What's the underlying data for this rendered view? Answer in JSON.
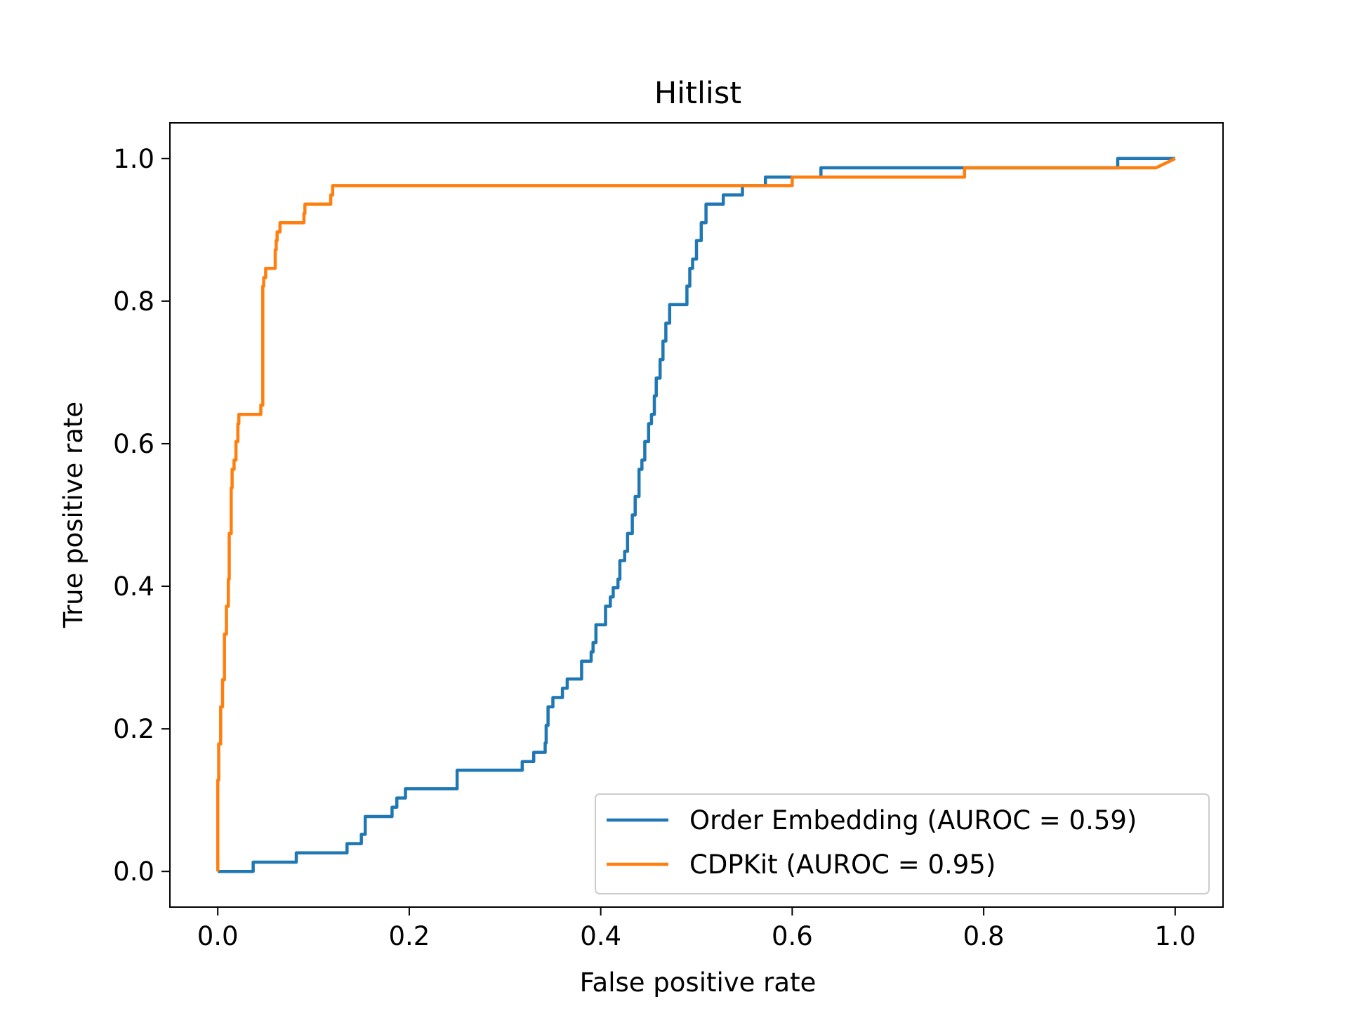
{
  "chart_data": {
    "type": "line",
    "title": "Hitlist",
    "xlabel": "False positive rate",
    "ylabel": "True positive rate",
    "xlim": [
      -0.05,
      1.05
    ],
    "ylim": [
      -0.05,
      1.05
    ],
    "xticks": [
      0.0,
      0.2,
      0.4,
      0.6,
      0.8,
      1.0
    ],
    "xtick_labels": [
      "0.0",
      "0.2",
      "0.4",
      "0.6",
      "0.8",
      "1.0"
    ],
    "yticks": [
      0.0,
      0.2,
      0.4,
      0.6,
      0.8,
      1.0
    ],
    "ytick_labels": [
      "0.0",
      "0.2",
      "0.4",
      "0.6",
      "0.8",
      "1.0"
    ],
    "grid": false,
    "legend_position": "bottom-right",
    "series": [
      {
        "name": "Order Embedding (AUROC = 0.59)",
        "color": "#1f77b4",
        "x": [
          0.0,
          0.0,
          0.037,
          0.037,
          0.082,
          0.082,
          0.135,
          0.135,
          0.15,
          0.15,
          0.154,
          0.154,
          0.182,
          0.182,
          0.187,
          0.187,
          0.196,
          0.196,
          0.25,
          0.25,
          0.318,
          0.318,
          0.33,
          0.33,
          0.342,
          0.342,
          0.343,
          0.343,
          0.345,
          0.345,
          0.35,
          0.35,
          0.36,
          0.36,
          0.365,
          0.365,
          0.38,
          0.38,
          0.39,
          0.39,
          0.392,
          0.392,
          0.395,
          0.395,
          0.405,
          0.405,
          0.41,
          0.41,
          0.413,
          0.413,
          0.418,
          0.418,
          0.42,
          0.42,
          0.425,
          0.425,
          0.428,
          0.428,
          0.433,
          0.433,
          0.436,
          0.436,
          0.44,
          0.44,
          0.443,
          0.443,
          0.446,
          0.446,
          0.45,
          0.45,
          0.453,
          0.453,
          0.456,
          0.456,
          0.458,
          0.458,
          0.462,
          0.462,
          0.465,
          0.465,
          0.468,
          0.468,
          0.472,
          0.472,
          0.475,
          0.475,
          0.49,
          0.49,
          0.493,
          0.493,
          0.496,
          0.496,
          0.5,
          0.5,
          0.505,
          0.505,
          0.51,
          0.51,
          0.515,
          0.515,
          0.528,
          0.528,
          0.548,
          0.548,
          0.572,
          0.572,
          0.603,
          0.603,
          0.63,
          0.63,
          0.78,
          0.78,
          0.94,
          0.94,
          1.0
        ],
        "y": [
          0.0,
          0.0,
          0.0,
          0.013,
          0.013,
          0.026,
          0.026,
          0.039,
          0.039,
          0.052,
          0.052,
          0.077,
          0.077,
          0.09,
          0.09,
          0.103,
          0.103,
          0.116,
          0.116,
          0.142,
          0.142,
          0.154,
          0.154,
          0.167,
          0.167,
          0.18,
          0.18,
          0.205,
          0.205,
          0.231,
          0.231,
          0.244,
          0.244,
          0.257,
          0.257,
          0.27,
          0.27,
          0.295,
          0.295,
          0.308,
          0.308,
          0.321,
          0.321,
          0.346,
          0.346,
          0.372,
          0.372,
          0.385,
          0.385,
          0.398,
          0.398,
          0.41,
          0.41,
          0.436,
          0.436,
          0.449,
          0.449,
          0.474,
          0.474,
          0.5,
          0.5,
          0.526,
          0.526,
          0.564,
          0.564,
          0.577,
          0.577,
          0.603,
          0.603,
          0.628,
          0.628,
          0.641,
          0.641,
          0.667,
          0.667,
          0.692,
          0.692,
          0.718,
          0.718,
          0.744,
          0.744,
          0.769,
          0.769,
          0.795,
          0.795,
          0.795,
          0.795,
          0.821,
          0.821,
          0.846,
          0.846,
          0.859,
          0.859,
          0.885,
          0.885,
          0.91,
          0.91,
          0.936,
          0.936,
          0.936,
          0.936,
          0.949,
          0.949,
          0.962,
          0.962,
          0.974,
          0.974,
          0.974,
          0.974,
          0.987,
          0.987,
          0.987,
          0.987,
          1.0,
          1.0
        ]
      },
      {
        "name": "CDPKit (AUROC = 0.95)",
        "color": "#ff7f0e",
        "x": [
          0.0,
          0.0,
          0.001,
          0.001,
          0.003,
          0.003,
          0.005,
          0.005,
          0.007,
          0.007,
          0.009,
          0.009,
          0.011,
          0.011,
          0.012,
          0.012,
          0.014,
          0.014,
          0.015,
          0.015,
          0.016,
          0.016,
          0.017,
          0.017,
          0.019,
          0.019,
          0.021,
          0.021,
          0.022,
          0.022,
          0.023,
          0.023,
          0.045,
          0.045,
          0.047,
          0.047,
          0.048,
          0.048,
          0.05,
          0.05,
          0.052,
          0.052,
          0.06,
          0.06,
          0.061,
          0.061,
          0.062,
          0.062,
          0.065,
          0.065,
          0.066,
          0.066,
          0.09,
          0.09,
          0.091,
          0.091,
          0.118,
          0.118,
          0.12,
          0.12,
          0.6,
          0.6,
          0.78,
          0.78,
          0.98,
          1.0
        ],
        "y": [
          0.0,
          0.128,
          0.128,
          0.179,
          0.179,
          0.231,
          0.231,
          0.269,
          0.269,
          0.333,
          0.333,
          0.372,
          0.372,
          0.41,
          0.41,
          0.474,
          0.474,
          0.538,
          0.538,
          0.564,
          0.564,
          0.564,
          0.564,
          0.577,
          0.577,
          0.603,
          0.603,
          0.628,
          0.628,
          0.641,
          0.641,
          0.641,
          0.641,
          0.654,
          0.654,
          0.821,
          0.821,
          0.833,
          0.833,
          0.846,
          0.846,
          0.846,
          0.846,
          0.872,
          0.872,
          0.885,
          0.885,
          0.897,
          0.897,
          0.91,
          0.91,
          0.91,
          0.91,
          0.923,
          0.923,
          0.936,
          0.936,
          0.949,
          0.949,
          0.962,
          0.962,
          0.974,
          0.974,
          0.987,
          0.987,
          1.0
        ]
      }
    ]
  }
}
